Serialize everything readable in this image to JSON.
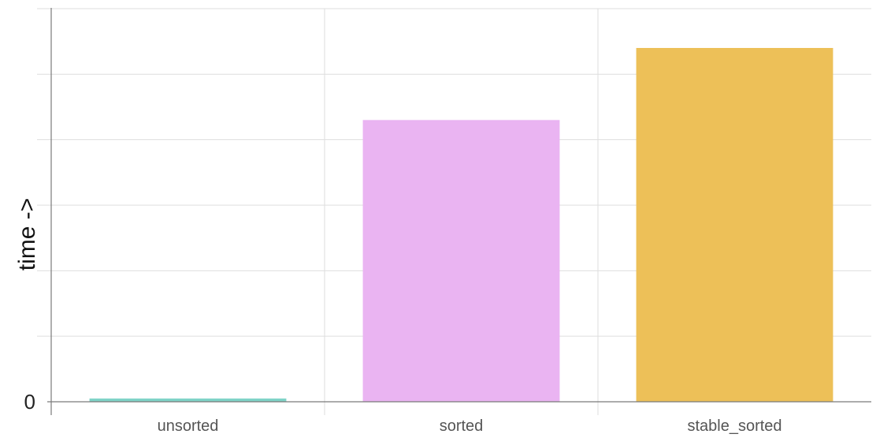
{
  "chart_data": {
    "type": "bar",
    "categories": [
      "unsorted",
      "sorted",
      "stable_sorted"
    ],
    "values": [
      0.05,
      4.3,
      5.4
    ],
    "colors": [
      "#7fd3c7",
      "#eab4f2",
      "#edc058"
    ],
    "ylabel": "time ->",
    "xlabel": "",
    "title": "",
    "ylim": [
      0,
      6
    ],
    "y_tick_labels": [
      "0"
    ],
    "grid": true
  }
}
